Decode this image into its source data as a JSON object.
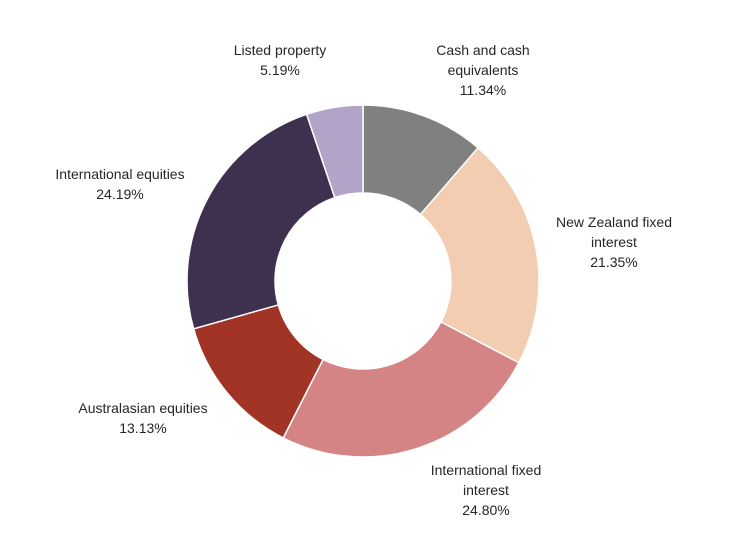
{
  "chart_data": {
    "type": "pie",
    "variant": "donut",
    "title": "",
    "start_angle_deg": 0,
    "direction": "clockwise",
    "legend": "none",
    "slices": [
      {
        "label_lines": [
          "Cash and cash",
          "equivalents"
        ],
        "value_label": "11.34%",
        "value": 11.34,
        "color": "#808080"
      },
      {
        "label_lines": [
          "New Zealand fixed",
          "interest"
        ],
        "value_label": "21.35%",
        "value": 21.35,
        "color": "#F2CDB2"
      },
      {
        "label_lines": [
          "International fixed",
          "interest"
        ],
        "value_label": "24.80%",
        "value": 24.8,
        "color": "#D48484"
      },
      {
        "label_lines": [
          "Australasian equities"
        ],
        "value_label": "13.13%",
        "value": 13.13,
        "color": "#A23426"
      },
      {
        "label_lines": [
          "International equities"
        ],
        "value_label": "24.19%",
        "value": 24.19,
        "color": "#3E3150"
      },
      {
        "label_lines": [
          "Listed property"
        ],
        "value_label": "5.19%",
        "value": 5.19,
        "color": "#B2A3C8"
      }
    ]
  }
}
